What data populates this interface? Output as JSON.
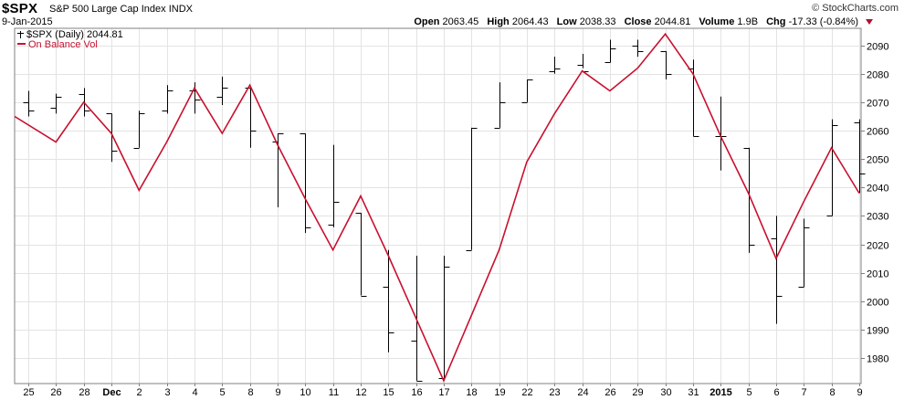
{
  "header": {
    "symbol": "$SPX",
    "name": "S&P 500 Large Cap Index",
    "exchange": "INDX",
    "date": "9-Jan-2015",
    "brand": "© StockCharts.com",
    "quote": {
      "open_label": "Open",
      "open_value": "2063.45",
      "high_label": "High",
      "high_value": "2064.43",
      "low_label": "Low",
      "low_value": "2038.33",
      "close_label": "Close",
      "close_value": "2044.81",
      "volume_label": "Volume",
      "volume_value": "1.9B",
      "chg_label": "Chg",
      "chg_value": "-17.33 (-0.84%)"
    }
  },
  "legend": {
    "price_label": "$SPX (Daily) 2044.81",
    "obv_label": "On Balance Vol"
  },
  "colors": {
    "obv_line": "#c8102e",
    "bars": "#000000",
    "grid": "#e3e3e3",
    "chg_arrow": "#b01030"
  },
  "chart_data": {
    "type": "line",
    "bar_style": "ohlc",
    "grid": true,
    "y_axis_position": "right",
    "ylim": [
      1971,
      2096
    ],
    "y_ticks": [
      1980,
      1990,
      2000,
      2010,
      2020,
      2030,
      2040,
      2050,
      2060,
      2070,
      2080,
      2090
    ],
    "categories": [
      "25",
      "26",
      "28",
      "Dec",
      "2",
      "3",
      "4",
      "5",
      "8",
      "9",
      "10",
      "11",
      "12",
      "15",
      "16",
      "17",
      "18",
      "19",
      "22",
      "23",
      "24",
      "26",
      "29",
      "30",
      "31",
      "2015",
      "5",
      "6",
      "7",
      "8",
      "9"
    ],
    "bold_categories": [
      "Dec",
      "2015"
    ],
    "ohlc": [
      {
        "o": 2070,
        "h": 2074,
        "l": 2065,
        "c": 2067
      },
      {
        "o": 2068,
        "h": 2073,
        "l": 2066,
        "c": 2072
      },
      {
        "o": 2073,
        "h": 2075,
        "l": 2065,
        "c": 2067
      },
      {
        "o": 2066,
        "h": 2066,
        "l": 2049,
        "c": 2053
      },
      {
        "o": 2054,
        "h": 2067,
        "l": 2054,
        "c": 2066
      },
      {
        "o": 2067,
        "h": 2076,
        "l": 2066,
        "c": 2074
      },
      {
        "o": 2074,
        "h": 2077,
        "l": 2066,
        "c": 2071
      },
      {
        "o": 2072,
        "h": 2079,
        "l": 2069,
        "c": 2075
      },
      {
        "o": 2075,
        "h": 2075,
        "l": 2054,
        "c": 2060
      },
      {
        "o": 2056,
        "h": 2059,
        "l": 2033,
        "c": 2059
      },
      {
        "o": 2059,
        "h": 2059,
        "l": 2024,
        "c": 2026
      },
      {
        "o": 2027,
        "h": 2055,
        "l": 2026,
        "c": 2035
      },
      {
        "o": 2031,
        "h": 2031,
        "l": 2002,
        "c": 2002
      },
      {
        "o": 2005,
        "h": 2018,
        "l": 1982,
        "c": 1989
      },
      {
        "o": 1986,
        "h": 2016,
        "l": 1972,
        "c": 1972
      },
      {
        "o": 1973,
        "h": 2016,
        "l": 1972,
        "c": 2012
      },
      {
        "o": 2018,
        "h": 2061,
        "l": 2018,
        "c": 2061
      },
      {
        "o": 2061,
        "h": 2077,
        "l": 2061,
        "c": 2070
      },
      {
        "o": 2070,
        "h": 2078,
        "l": 2070,
        "c": 2078
      },
      {
        "o": 2081,
        "h": 2086,
        "l": 2080,
        "c": 2082
      },
      {
        "o": 2083,
        "h": 2087,
        "l": 2082,
        "c": 2081
      },
      {
        "o": 2084,
        "h": 2092,
        "l": 2084,
        "c": 2089
      },
      {
        "o": 2090,
        "h": 2092,
        "l": 2086,
        "c": 2088
      },
      {
        "o": 2088,
        "h": 2088,
        "l": 2078,
        "c": 2080
      },
      {
        "o": 2082,
        "h": 2085,
        "l": 2058,
        "c": 2058
      },
      {
        "o": 2058,
        "h": 2072,
        "l": 2046,
        "c": 2058
      },
      {
        "o": 2054,
        "h": 2054,
        "l": 2017,
        "c": 2020
      },
      {
        "o": 2022,
        "h": 2030,
        "l": 1992,
        "c": 2002
      },
      {
        "o": 2005,
        "h": 2029,
        "l": 2005,
        "c": 2026
      },
      {
        "o": 2030,
        "h": 2064,
        "l": 2030,
        "c": 2062
      },
      {
        "o": 2063,
        "h": 2064,
        "l": 2038,
        "c": 2045
      }
    ],
    "series": [
      {
        "name": "On Balance Vol",
        "values": [
          2065,
          2056,
          2070,
          2059,
          2039,
          2056,
          2075,
          2059,
          2076,
          2055,
          2036,
          2018,
          2037,
          2016,
          1994,
          1972,
          1995,
          2018,
          2049,
          2066,
          2081,
          2074,
          2082,
          2094,
          2080,
          2058,
          2038,
          2015,
          2035,
          2054,
          2038
        ]
      }
    ]
  }
}
